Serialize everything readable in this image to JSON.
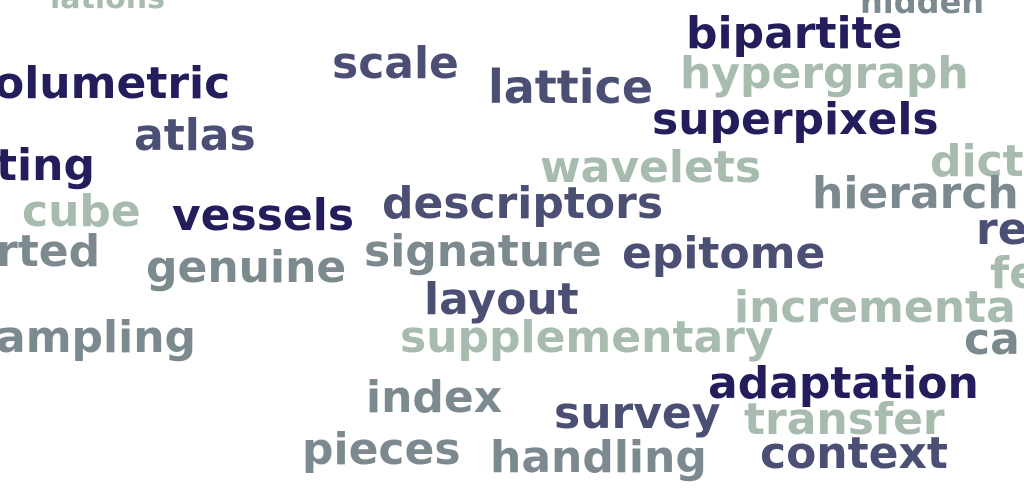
{
  "words": {
    "lations": "lations",
    "hidden": "hidden",
    "bipartite": "bipartite",
    "scale": "scale",
    "hypergraph": "hypergraph",
    "olumetric": "olumetric",
    "lattice": "lattice",
    "superpixels": "superpixels",
    "atlas": "atlas",
    "ting": "ting",
    "wavelets": "wavelets",
    "dict": "dict",
    "hierarch": "hierarch",
    "cube": "cube",
    "vessels": "vessels",
    "descriptors": "descriptors",
    "re": "re",
    "rted": "rted",
    "genuine": "genuine",
    "signature": "signature",
    "epitome": "epitome",
    "fe": "fe",
    "layout": "layout",
    "incremental": "incrementa",
    "ampling": "ampling",
    "supplementary": "supplementary",
    "ca": "ca",
    "adaptation": "adaptation",
    "index": "index",
    "survey": "survey",
    "transfer": "transfer",
    "pieces": "pieces",
    "handling": "handling",
    "context": "context"
  },
  "colors": {
    "navy": "#231d5c",
    "slate": "#4c4f74",
    "grey": "#7c8a8f",
    "sage": "#a8bbaf"
  }
}
